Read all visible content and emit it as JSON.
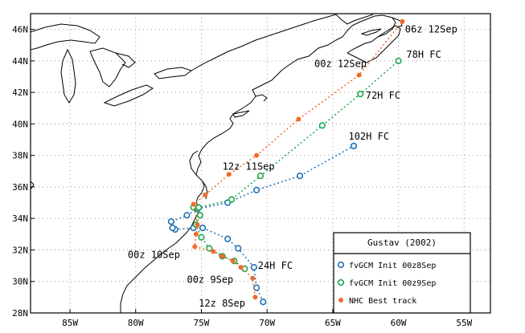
{
  "axes": {
    "xlim": [
      -88,
      -53
    ],
    "ylim": [
      28,
      47
    ],
    "x_ticks": [
      {
        "value": -85,
        "label": "85W"
      },
      {
        "value": -80,
        "label": "80W"
      },
      {
        "value": -75,
        "label": "75W"
      },
      {
        "value": -70,
        "label": "70W"
      },
      {
        "value": -65,
        "label": "65W"
      },
      {
        "value": -60,
        "label": "60W"
      },
      {
        "value": -55,
        "label": "55W"
      }
    ],
    "y_ticks": [
      {
        "value": 28,
        "label": "28N"
      },
      {
        "value": 30,
        "label": "30N"
      },
      {
        "value": 32,
        "label": "32N"
      },
      {
        "value": 34,
        "label": "34N"
      },
      {
        "value": 36,
        "label": "36N"
      },
      {
        "value": 38,
        "label": "38N"
      },
      {
        "value": 40,
        "label": "40N"
      },
      {
        "value": 42,
        "label": "42N"
      },
      {
        "value": 44,
        "label": "44N"
      },
      {
        "value": 46,
        "label": "46N"
      }
    ],
    "grid": true
  },
  "legend": {
    "title": "Gustav (2002)",
    "entries": [
      {
        "label": "fvGCM Init 00z8Sep",
        "color": "#1f6fb8",
        "marker": "open-circle"
      },
      {
        "label": "fvGCM Init 00z9Sep",
        "color": "#1aa64a",
        "marker": "open-circle"
      },
      {
        "label": "NHC Best track",
        "color": "#f26a2a",
        "marker": "filled-circle"
      }
    ]
  },
  "tracks": [
    {
      "name": "fvGCM Init 00z8Sep",
      "color": "#1f6fb8",
      "marker": "open-circle",
      "points": [
        [
          -70.3,
          28.7
        ],
        [
          -70.8,
          29.6
        ],
        [
          -71.0,
          30.9
        ],
        [
          -72.2,
          32.1
        ],
        [
          -73.0,
          32.7
        ],
        [
          -74.9,
          33.4
        ],
        [
          -75.6,
          33.4
        ],
        [
          -77.0,
          33.3
        ],
        [
          -77.2,
          33.4
        ],
        [
          -77.3,
          33.8
        ],
        [
          -76.1,
          34.2
        ],
        [
          -75.3,
          34.6
        ],
        [
          -73.0,
          35.0
        ],
        [
          -70.8,
          35.8
        ],
        [
          -67.5,
          36.7
        ],
        [
          -63.4,
          38.6
        ]
      ]
    },
    {
      "name": "fvGCM Init 00z9Sep",
      "color": "#1aa64a",
      "marker": "open-circle",
      "points": [
        [
          -71.7,
          30.8
        ],
        [
          -72.5,
          31.3
        ],
        [
          -73.4,
          31.6
        ],
        [
          -74.4,
          32.1
        ],
        [
          -75.0,
          32.8
        ],
        [
          -75.4,
          33.6
        ],
        [
          -75.1,
          34.2
        ],
        [
          -75.6,
          34.7
        ],
        [
          -75.2,
          34.7
        ],
        [
          -72.7,
          35.2
        ],
        [
          -70.5,
          36.7
        ],
        [
          -65.8,
          39.9
        ],
        [
          -62.9,
          41.9
        ],
        [
          -60.0,
          44.0
        ]
      ]
    },
    {
      "name": "NHC Best track",
      "color": "#f26a2a",
      "marker": "filled-circle",
      "points": [
        [
          -70.9,
          29.0
        ],
        [
          -71.1,
          30.2
        ],
        [
          -72.0,
          30.9
        ],
        [
          -72.6,
          31.3
        ],
        [
          -73.4,
          31.6
        ],
        [
          -74.1,
          31.9
        ],
        [
          -75.5,
          32.2
        ],
        [
          -75.4,
          33.0
        ],
        [
          -75.3,
          33.6
        ],
        [
          -75.6,
          34.9
        ],
        [
          -74.7,
          35.5
        ],
        [
          -72.9,
          36.8
        ],
        [
          -70.8,
          38.0
        ],
        [
          -67.6,
          40.3
        ],
        [
          -63.0,
          43.1
        ],
        [
          -59.7,
          46.5
        ]
      ]
    }
  ],
  "annotations": [
    {
      "text": "06z 12Sep",
      "lon": -59.5,
      "lat": 45.8
    },
    {
      "text": "78H FC",
      "lon": -59.4,
      "lat": 44.2
    },
    {
      "text": "00z 12Sep",
      "lon": -66.4,
      "lat": 43.6
    },
    {
      "text": "72H FC",
      "lon": -62.5,
      "lat": 41.6
    },
    {
      "text": "102H FC",
      "lon": -63.8,
      "lat": 39.0
    },
    {
      "text": "12z 11Sep",
      "lon": -73.4,
      "lat": 37.1
    },
    {
      "text": "00z 10Sep",
      "lon": -80.6,
      "lat": 31.5
    },
    {
      "text": "24H FC",
      "lon": -70.7,
      "lat": 30.8
    },
    {
      "text": "00z 9Sep",
      "lon": -76.1,
      "lat": 29.9
    },
    {
      "text": "12z 8Sep",
      "lon": -75.2,
      "lat": 28.4
    }
  ],
  "colors": {
    "coastline": "#000000",
    "grid": "#9a9a9a",
    "frame": "#000000"
  }
}
